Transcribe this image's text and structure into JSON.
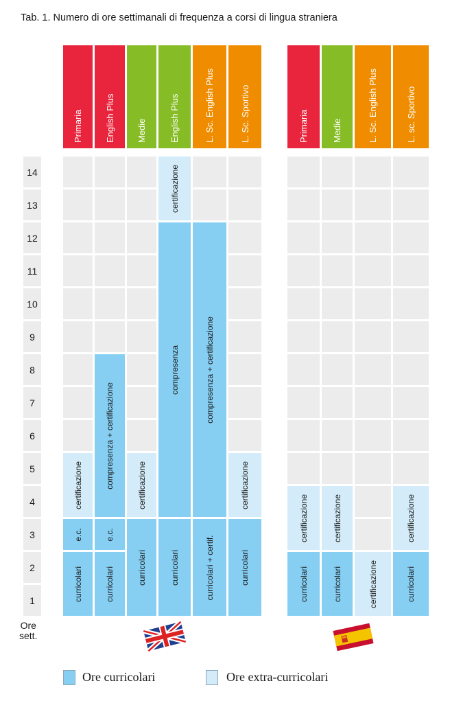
{
  "title": "Tab. 1.  Numero di ore settimanali di frequenza a corsi di lingua straniera",
  "colors": {
    "red": "#e8253d",
    "green": "#86bc25",
    "orange": "#ef8c00",
    "curricular": "#86cff3",
    "extracurricular": "#d4ecf9",
    "empty": "#ececec"
  },
  "hours": [
    "1",
    "2",
    "3",
    "4",
    "5",
    "6",
    "7",
    "8",
    "9",
    "10",
    "11",
    "12",
    "13",
    "14"
  ],
  "hours_axis_label": "Ore\nsett.",
  "uk_group": {
    "flag": "uk-flag-icon",
    "columns": [
      {
        "label": "Primaria",
        "color": "red",
        "blocks": [
          {
            "from": 1,
            "to": 2,
            "type": "curricular",
            "label": "curricolari"
          },
          {
            "from": 3,
            "to": 3,
            "type": "curricular",
            "label": "e.c."
          },
          {
            "from": 4,
            "to": 5,
            "type": "extracurricular",
            "label": "certificazione"
          }
        ]
      },
      {
        "label": "English Plus",
        "color": "red",
        "blocks": [
          {
            "from": 1,
            "to": 2,
            "type": "curricular",
            "label": "curricolari"
          },
          {
            "from": 3,
            "to": 3,
            "type": "curricular",
            "label": "e.c."
          },
          {
            "from": 4,
            "to": 8,
            "type": "curricular",
            "label": "compresenza + certificazione"
          }
        ]
      },
      {
        "label": "Medie",
        "color": "green",
        "blocks": [
          {
            "from": 1,
            "to": 3,
            "type": "curricular",
            "label": "curricolari"
          },
          {
            "from": 4,
            "to": 5,
            "type": "extracurricular",
            "label": "certificazione"
          }
        ]
      },
      {
        "label": "English Plus",
        "color": "green",
        "blocks": [
          {
            "from": 1,
            "to": 3,
            "type": "curricular",
            "label": "curricolari"
          },
          {
            "from": 4,
            "to": 12,
            "type": "curricular",
            "label": "compresenza"
          },
          {
            "from": 13,
            "to": 14,
            "type": "extracurricular",
            "label": "certificazione"
          }
        ]
      },
      {
        "label": "L. Sc. English Plus",
        "color": "orange",
        "blocks": [
          {
            "from": 1,
            "to": 3,
            "type": "curricular",
            "label": "curricolari + certif."
          },
          {
            "from": 4,
            "to": 12,
            "type": "curricular",
            "label": "compresenza + certificazione"
          }
        ]
      },
      {
        "label": "L. Sc. Sportivo",
        "color": "orange",
        "blocks": [
          {
            "from": 1,
            "to": 3,
            "type": "curricular",
            "label": "curricolari"
          },
          {
            "from": 4,
            "to": 5,
            "type": "extracurricular",
            "label": "certificazione"
          }
        ]
      }
    ]
  },
  "es_group": {
    "flag": "spain-flag-icon",
    "columns": [
      {
        "label": "Primaria",
        "color": "red",
        "blocks": [
          {
            "from": 1,
            "to": 2,
            "type": "curricular",
            "label": "curricolari"
          },
          {
            "from": 3,
            "to": 4,
            "type": "extracurricular",
            "label": "certificazione"
          }
        ]
      },
      {
        "label": "Medie",
        "color": "green",
        "blocks": [
          {
            "from": 1,
            "to": 2,
            "type": "curricular",
            "label": "curricolari"
          },
          {
            "from": 3,
            "to": 4,
            "type": "extracurricular",
            "label": "certificazione"
          }
        ]
      },
      {
        "label": "L. Sc. English Plus",
        "color": "orange",
        "blocks": [
          {
            "from": 1,
            "to": 2,
            "type": "extracurricular",
            "label": "certificazione"
          }
        ]
      },
      {
        "label": "L. sc. Sportivo",
        "color": "orange",
        "blocks": [
          {
            "from": 1,
            "to": 2,
            "type": "curricular",
            "label": "curricolari"
          },
          {
            "from": 3,
            "to": 4,
            "type": "extracurricular",
            "label": "certificazione"
          }
        ]
      }
    ]
  },
  "legend": {
    "curricular": "Ore curricolari",
    "extracurricular": "Ore extra-curricolari"
  }
}
